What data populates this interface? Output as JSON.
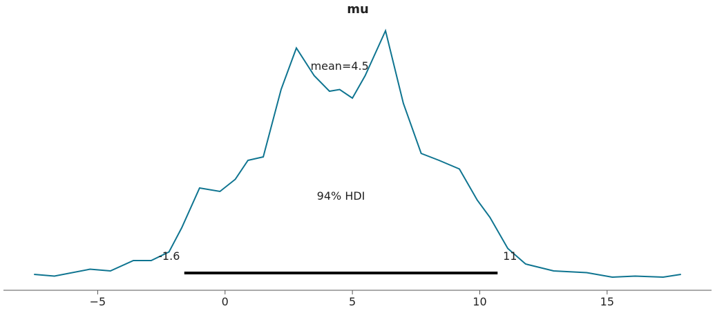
{
  "chart_data": {
    "type": "line",
    "title": "mu",
    "color": "#0e7490",
    "x": [
      -7.5,
      -6.7,
      -5.3,
      -4.5,
      -3.6,
      -2.9,
      -2.2,
      -1.7,
      -1.0,
      -0.2,
      0.4,
      0.9,
      1.5,
      2.2,
      2.8,
      3.5,
      4.1,
      4.5,
      5.0,
      5.5,
      6.3,
      7.0,
      7.7,
      8.4,
      9.2,
      9.9,
      10.4,
      11.1,
      11.8,
      12.9,
      14.2,
      15.2,
      16.1,
      17.2,
      17.9
    ],
    "values": [
      0.002,
      0.001,
      0.005,
      0.004,
      0.01,
      0.01,
      0.015,
      0.029,
      0.052,
      0.05,
      0.057,
      0.068,
      0.07,
      0.109,
      0.133,
      0.117,
      0.108,
      0.109,
      0.104,
      0.117,
      0.143,
      0.101,
      0.072,
      0.068,
      0.063,
      0.045,
      0.035,
      0.017,
      0.008,
      0.004,
      0.003,
      0.0004,
      0.001,
      0.0004,
      0.002
    ],
    "mean": {
      "value": 4.5,
      "label": "mean=4.5"
    },
    "hdi_prob": {
      "value": 94,
      "label": "94% HDI"
    },
    "hdi": [
      {
        "value": -1.6,
        "label": "-1.6"
      },
      {
        "value": 10.7,
        "label": "11"
      }
    ],
    "xlim": [
      -8.7,
      19.1
    ],
    "ylim": [
      0,
      0.15
    ],
    "xticks": [
      {
        "value": -5,
        "label": "−5"
      },
      0,
      5,
      10,
      15
    ]
  }
}
